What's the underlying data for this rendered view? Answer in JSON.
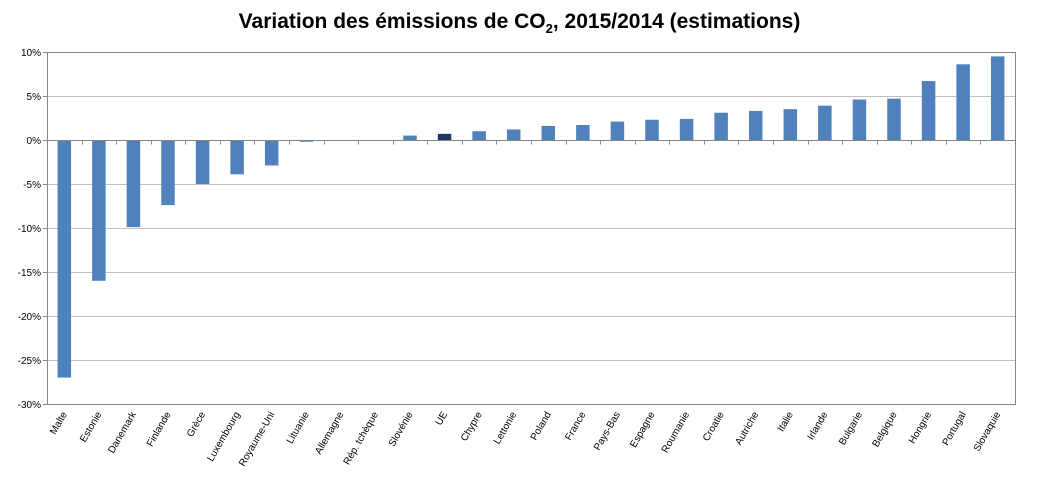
{
  "chart_data": {
    "type": "bar",
    "title": {
      "prefix": "Variation des émissions de CO",
      "subscript": "2",
      "suffix": ", 2015/2014 (estimations)"
    },
    "xlabel": "",
    "ylabel": "",
    "ylim": [
      -30,
      10
    ],
    "yticks": [
      {
        "value": 10,
        "label": "10%"
      },
      {
        "value": 5,
        "label": "5%"
      },
      {
        "value": 0,
        "label": "0%"
      },
      {
        "value": -5,
        "label": "-5%"
      },
      {
        "value": -10,
        "label": "-10%"
      },
      {
        "value": -15,
        "label": "-15%"
      },
      {
        "value": -20,
        "label": "-20%"
      },
      {
        "value": -25,
        "label": "-25%"
      },
      {
        "value": -30,
        "label": "-30%"
      }
    ],
    "grid": true,
    "legend": "none",
    "categories": [
      "Malte",
      "Estonie",
      "Danemark",
      "Finlande",
      "Grèce",
      "Luxembourg",
      "Royaume-Uni",
      "Lituanie",
      "Allemagne",
      "Rép. tchèque",
      "Slovénie",
      "UE",
      "Chypre",
      "Lettonie",
      "Poland",
      "France",
      "Pays-Bas",
      "Espagne",
      "Roumanie",
      "Croatie",
      "Autriche",
      "Italie",
      "Irlande",
      "Bulgarie",
      "Belgique",
      "Hongrie",
      "Portugal",
      "Slovaquie"
    ],
    "values": [
      -27.0,
      -16.0,
      -9.9,
      -7.4,
      -5.0,
      -3.9,
      -2.9,
      -0.2,
      0.0,
      0.0,
      0.5,
      0.7,
      1.0,
      1.2,
      1.6,
      1.7,
      2.1,
      2.3,
      2.4,
      3.1,
      3.3,
      3.5,
      3.9,
      4.6,
      4.7,
      6.7,
      8.6,
      9.5
    ],
    "highlight_category": "UE",
    "colors": {
      "bar": "#4F81BD",
      "highlight": "#1F3864",
      "grid": "#BFBFBF",
      "axis": "#868686",
      "frame": "#868686"
    }
  }
}
